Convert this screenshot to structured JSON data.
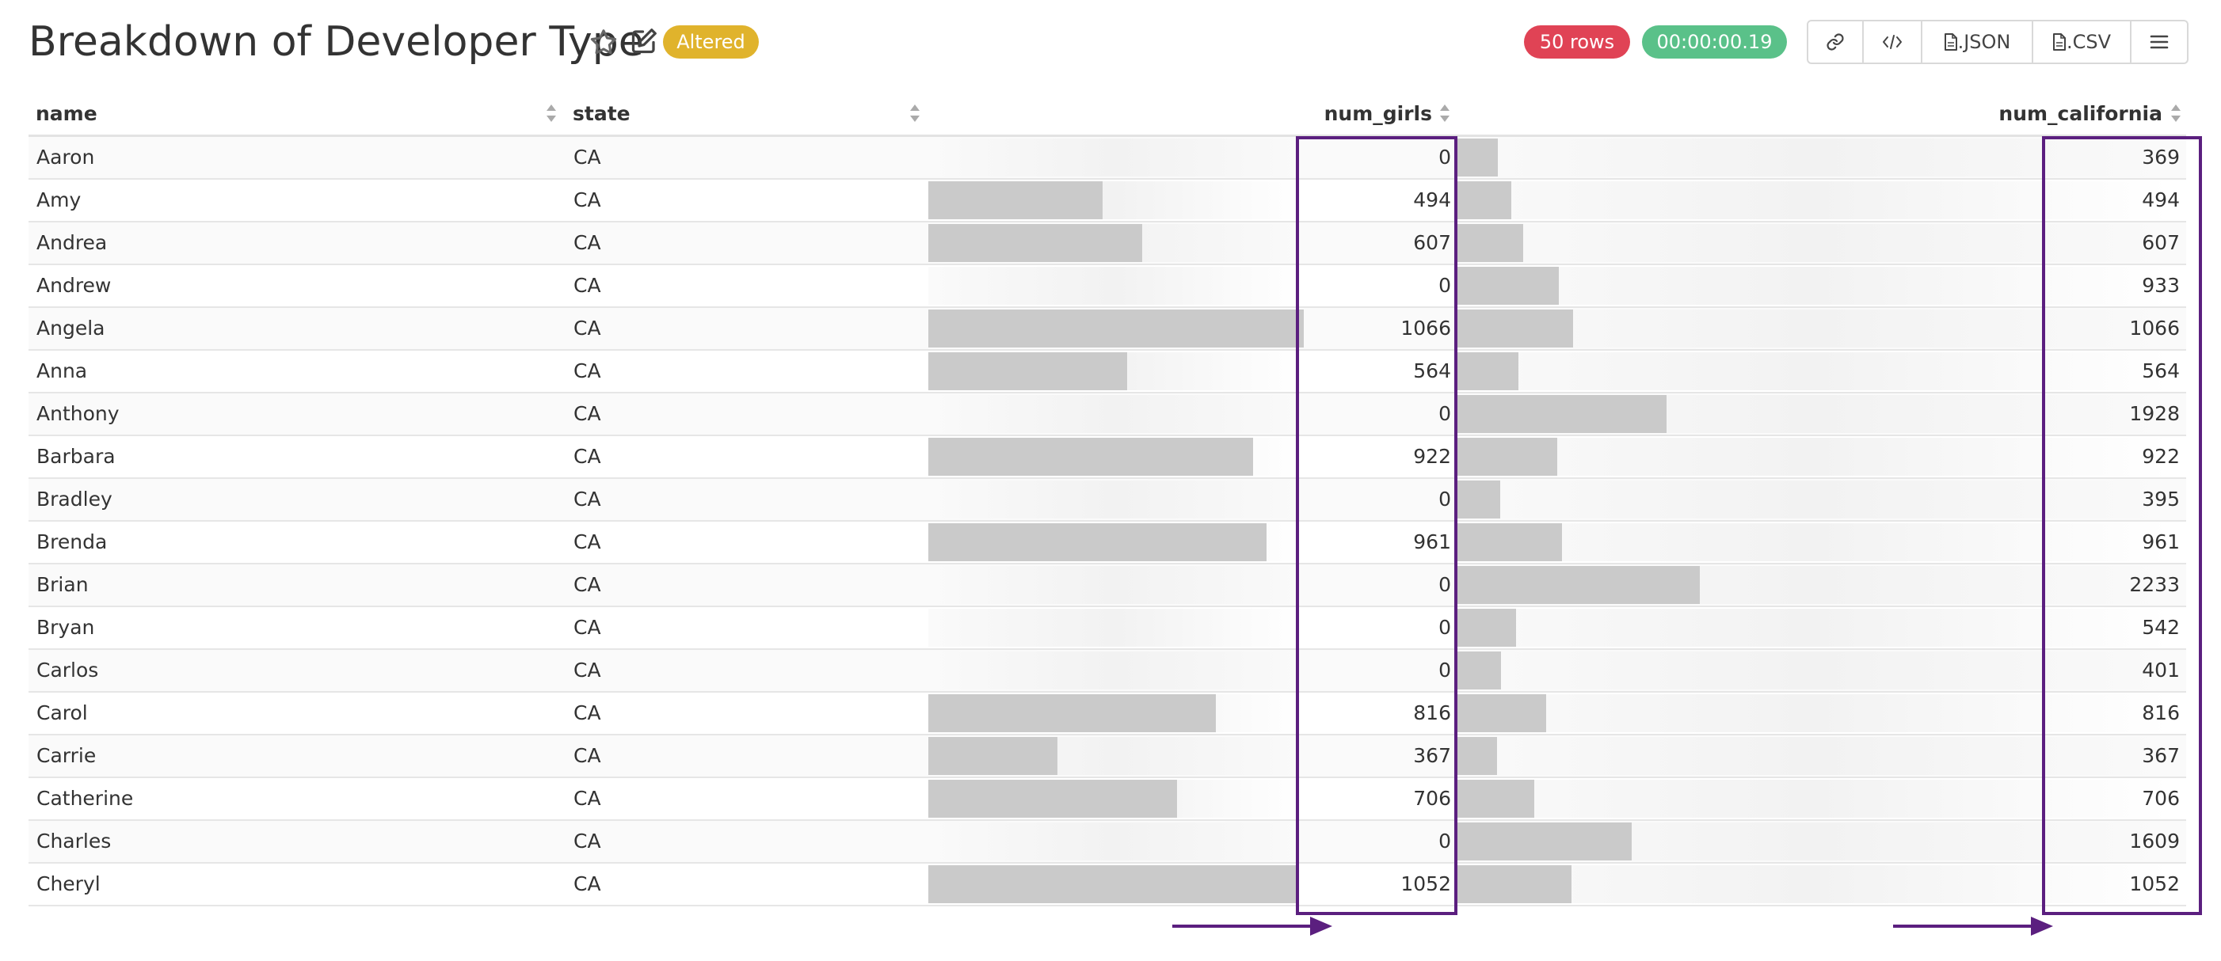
{
  "header": {
    "title": "Breakdown of Developer Type",
    "altered_badge": "Altered",
    "rows_badge": "50 rows",
    "time_badge": "00:00:00.19"
  },
  "toolbar": {
    "items": [
      {
        "icon": "link-icon",
        "label": ""
      },
      {
        "icon": "code-icon",
        "label": ""
      },
      {
        "icon": "file-icon",
        "label": ".JSON"
      },
      {
        "icon": "file-icon",
        "label": ".CSV"
      },
      {
        "icon": "menu-icon",
        "label": ""
      }
    ]
  },
  "table": {
    "columns": [
      "name",
      "state",
      "num_girls",
      "num_california"
    ],
    "rows": [
      {
        "name": "Aaron",
        "state": "CA",
        "num_girls": 0,
        "num_california": 369
      },
      {
        "name": "Amy",
        "state": "CA",
        "num_girls": 494,
        "num_california": 494
      },
      {
        "name": "Andrea",
        "state": "CA",
        "num_girls": 607,
        "num_california": 607
      },
      {
        "name": "Andrew",
        "state": "CA",
        "num_girls": 0,
        "num_california": 933
      },
      {
        "name": "Angela",
        "state": "CA",
        "num_girls": 1066,
        "num_california": 1066
      },
      {
        "name": "Anna",
        "state": "CA",
        "num_girls": 564,
        "num_california": 564
      },
      {
        "name": "Anthony",
        "state": "CA",
        "num_girls": 0,
        "num_california": 1928
      },
      {
        "name": "Barbara",
        "state": "CA",
        "num_girls": 922,
        "num_california": 922
      },
      {
        "name": "Bradley",
        "state": "CA",
        "num_girls": 0,
        "num_california": 395
      },
      {
        "name": "Brenda",
        "state": "CA",
        "num_girls": 961,
        "num_california": 961
      },
      {
        "name": "Brian",
        "state": "CA",
        "num_girls": 0,
        "num_california": 2233
      },
      {
        "name": "Bryan",
        "state": "CA",
        "num_girls": 0,
        "num_california": 542
      },
      {
        "name": "Carlos",
        "state": "CA",
        "num_girls": 0,
        "num_california": 401
      },
      {
        "name": "Carol",
        "state": "CA",
        "num_girls": 816,
        "num_california": 816
      },
      {
        "name": "Carrie",
        "state": "CA",
        "num_girls": 367,
        "num_california": 367
      },
      {
        "name": "Catherine",
        "state": "CA",
        "num_girls": 706,
        "num_california": 706
      },
      {
        "name": "Charles",
        "state": "CA",
        "num_girls": 0,
        "num_california": 1609
      },
      {
        "name": "Cheryl",
        "state": "CA",
        "num_girls": 1052,
        "num_california": 1052
      }
    ]
  },
  "colors": {
    "altered": "#e0b32c",
    "rows": "#e04355",
    "time": "#5ac189",
    "highlight": "#5b1f7f",
    "bar": "#cacaca"
  }
}
